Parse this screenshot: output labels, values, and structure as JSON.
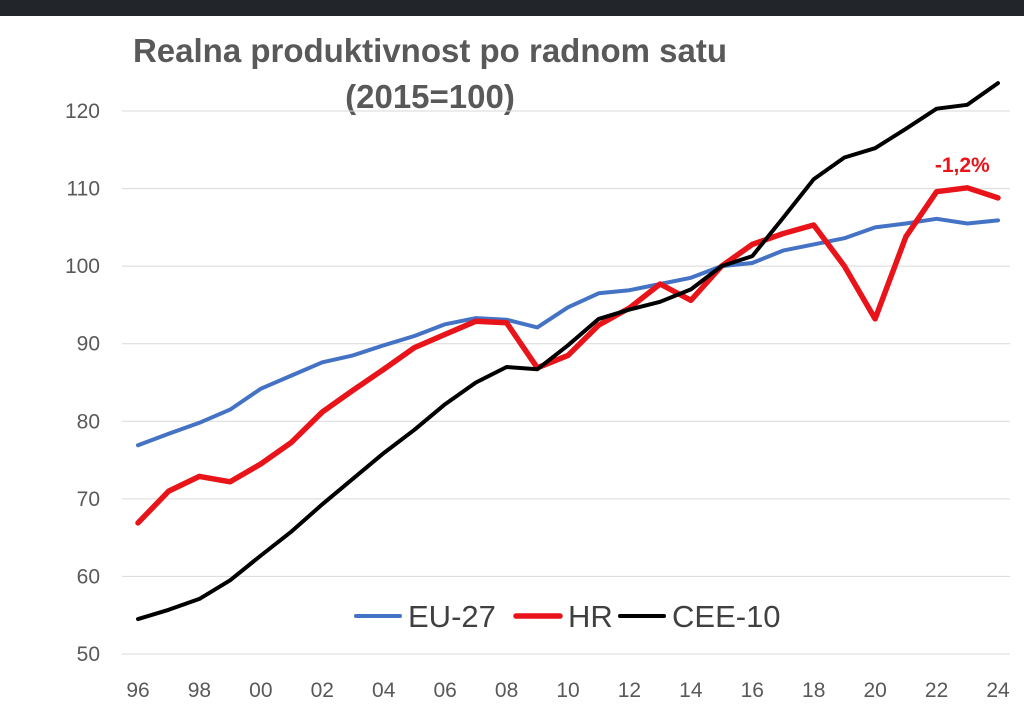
{
  "chart_data": {
    "type": "line",
    "title": "Realna produktivnost po radnom satu",
    "subtitle": "(2015=100)",
    "x": [
      "96",
      "97",
      "98",
      "99",
      "00",
      "01",
      "02",
      "03",
      "04",
      "05",
      "06",
      "07",
      "08",
      "09",
      "10",
      "11",
      "12",
      "13",
      "14",
      "15",
      "16",
      "17",
      "18",
      "19",
      "20",
      "21",
      "22",
      "23",
      "24"
    ],
    "x_tick_labels": [
      "96",
      "98",
      "00",
      "02",
      "04",
      "06",
      "08",
      "10",
      "12",
      "14",
      "16",
      "18",
      "20",
      "22",
      "24"
    ],
    "ylim": [
      50,
      120
    ],
    "y_ticks": [
      50,
      60,
      70,
      80,
      90,
      100,
      110,
      120
    ],
    "grid": true,
    "legend_position": "bottom-center",
    "series": [
      {
        "name": "EU-27",
        "color": "#4472c4",
        "values": [
          76.9,
          78.4,
          79.8,
          81.5,
          84.2,
          85.9,
          87.6,
          88.5,
          89.8,
          91.0,
          92.5,
          93.3,
          93.1,
          92.1,
          94.7,
          96.5,
          96.9,
          97.7,
          98.5,
          100.0,
          100.4,
          102.0,
          102.8,
          103.6,
          105.0,
          105.5,
          106.1,
          105.5,
          105.9
        ]
      },
      {
        "name": "HR",
        "color": "#e8141a",
        "values": [
          66.9,
          71.0,
          72.9,
          72.2,
          74.5,
          77.3,
          81.2,
          84.0,
          86.7,
          89.5,
          91.2,
          92.9,
          92.7,
          86.9,
          88.5,
          92.4,
          94.6,
          97.7,
          95.6,
          100.0,
          102.8,
          104.2,
          105.3,
          100.0,
          93.2,
          103.8,
          109.6,
          110.1,
          108.8
        ]
      },
      {
        "name": "CEE-10",
        "color": "#000000",
        "values": [
          54.5,
          55.7,
          57.1,
          59.5,
          62.7,
          65.8,
          69.3,
          72.6,
          75.9,
          78.9,
          82.2,
          85.0,
          87.0,
          86.7,
          89.8,
          93.2,
          94.4,
          95.4,
          97.0,
          100.0,
          101.3,
          106.2,
          111.2,
          114.0,
          115.2,
          117.7,
          120.3,
          120.8,
          123.6
        ]
      }
    ],
    "annotations": [
      {
        "text": "-1,2%",
        "series": "HR",
        "x": "23"
      }
    ]
  }
}
